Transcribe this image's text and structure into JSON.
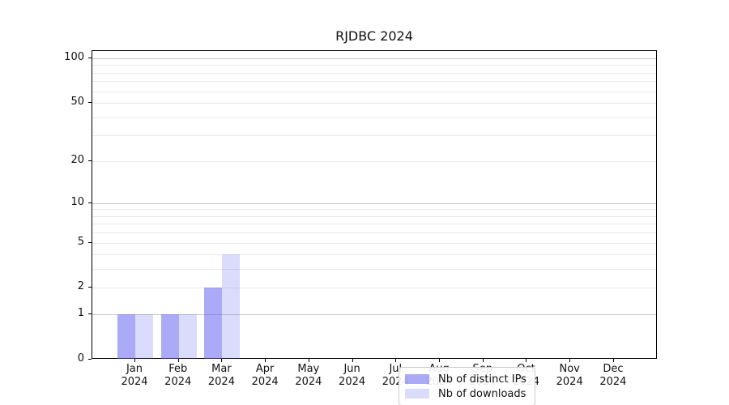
{
  "title": "RJDBC 2024",
  "chart_data": {
    "type": "bar",
    "title": "RJDBC 2024",
    "categories": [
      "Jan",
      "Feb",
      "Mar",
      "Apr",
      "May",
      "Jun",
      "Jul",
      "Aug",
      "Sep",
      "Oct",
      "Nov",
      "Dec"
    ],
    "category_year": "2024",
    "series": [
      {
        "name": "Nb of distinct IPs",
        "values": [
          1,
          1,
          2,
          0,
          0,
          0,
          0,
          0,
          0,
          0,
          0,
          0
        ],
        "fill": "rgba(85,85,238,0.50)",
        "color": "#aaaaf6"
      },
      {
        "name": "Nb of downloads",
        "values": [
          1,
          1,
          4,
          0,
          0,
          0,
          0,
          0,
          0,
          0,
          0,
          0
        ],
        "fill": "rgba(85,85,238,0.21)",
        "color": "#dbdbfb"
      }
    ],
    "xlabel": "",
    "ylabel": "",
    "yscale": "log1p",
    "ylim": [
      0,
      113
    ],
    "ytick_values": [
      0,
      1,
      2,
      5,
      10,
      20,
      50,
      100
    ],
    "ytick_labels": [
      "0",
      "1",
      "2",
      "5",
      "10",
      "20",
      "50",
      "100"
    ],
    "grid_major_values": [
      1,
      10,
      100
    ],
    "grid_minor_values": [
      2,
      3,
      4,
      5,
      6,
      7,
      8,
      9,
      20,
      30,
      40,
      50,
      60,
      70,
      80,
      90
    ],
    "grid": "horizontal",
    "legend_position": "inside-bottom-center"
  }
}
